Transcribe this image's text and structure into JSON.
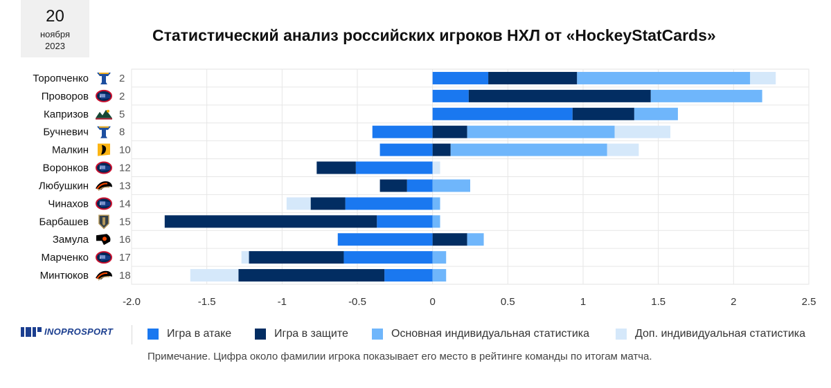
{
  "date": {
    "day": "20",
    "month": "ноября",
    "year": "2023"
  },
  "colors": {
    "attack": "#1a78f0",
    "defense": "#022d62",
    "main_stats": "#6fb6fb",
    "extra_stats": "#d5e8fa"
  },
  "chart_data": {
    "type": "bar",
    "orientation": "horizontal",
    "stacked": true,
    "title": "Статистический анализ российских игроков НХЛ от «HockeyStatCards»",
    "xlim": [
      -2.0,
      2.5
    ],
    "xticks": [
      "-2.0",
      "-1.5",
      "-1",
      "-0.5",
      "0",
      "0.5",
      "1",
      "1.5",
      "2",
      "2.5"
    ],
    "grid": true,
    "legend_position": "bottom",
    "categories": [
      "Торопченко",
      "Проворов",
      "Капризов",
      "Бучневич",
      "Малкин",
      "Воронков",
      "Любушкин",
      "Чинахов",
      "Барбашев",
      "Замула",
      "Марченко",
      "Минтюков"
    ],
    "ranks": [
      "2",
      "2",
      "5",
      "8",
      "10",
      "12",
      "13",
      "14",
      "15",
      "16",
      "17",
      "18"
    ],
    "team_icons": [
      "blues-logo-icon",
      "blue-jackets-logo-icon",
      "wild-logo-icon",
      "blues-logo-icon",
      "penguins-logo-icon",
      "blue-jackets-logo-icon",
      "ducks-logo-icon",
      "blue-jackets-logo-icon",
      "golden-knights-logo-icon",
      "flyers-logo-icon",
      "blue-jackets-logo-icon",
      "ducks-logo-icon"
    ],
    "series": [
      {
        "name": "Игра в атаке",
        "values": [
          0.37,
          0.24,
          0.93,
          -0.4,
          -0.35,
          -0.51,
          -0.17,
          -0.58,
          -0.37,
          -0.63,
          -0.59,
          -0.32
        ]
      },
      {
        "name": "Игра в защите",
        "values": [
          0.59,
          1.21,
          0.41,
          0.23,
          0.12,
          -0.26,
          -0.18,
          -0.23,
          -1.41,
          0.23,
          -0.63,
          -0.97
        ]
      },
      {
        "name": "Основная индивидуальная статистика",
        "values": [
          1.15,
          0.74,
          0.29,
          0.98,
          1.04,
          0.0,
          0.25,
          0.05,
          0.05,
          0.11,
          0.09,
          0.09
        ]
      },
      {
        "name": "Доп. индивидуальная статистика",
        "values": [
          0.17,
          0.0,
          0.0,
          0.37,
          0.21,
          0.05,
          0.0,
          -0.16,
          0.0,
          0.0,
          -0.05,
          -0.32
        ]
      }
    ]
  },
  "brand": {
    "name": "INOPROSPORT"
  },
  "note": "Примечание. Цифра около фамилии игрока показывает его место в рейтинге команды по итогам матча."
}
